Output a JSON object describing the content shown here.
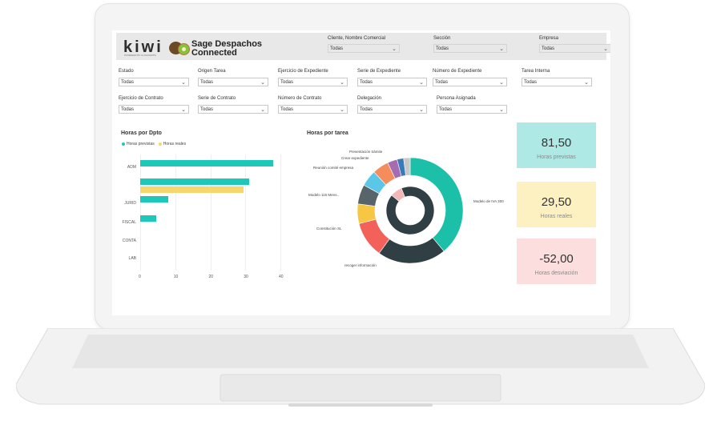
{
  "header": {
    "logo": "kiwi",
    "logo_sub": "POWERED BY CLOUDAPPS",
    "title": "Sage Despachos Connected"
  },
  "top_filters": [
    {
      "label": "Cliente, Nombre Comercial",
      "value": "Todas"
    },
    {
      "label": "Sección",
      "value": "Todas"
    },
    {
      "label": "Empresa",
      "value": "Todas"
    }
  ],
  "filters_row1": [
    {
      "label": "Estado",
      "value": "Todas"
    },
    {
      "label": "Origen Tarea",
      "value": "Todas"
    },
    {
      "label": "Ejercicio de Expediente",
      "value": "Todas"
    },
    {
      "label": "Serie de Expediente",
      "value": "Todas"
    },
    {
      "label": "Número de Expediente",
      "value": "Todas"
    },
    {
      "label": "Tarea Interna",
      "value": "Todas"
    }
  ],
  "filters_row2": [
    {
      "label": "Ejercicio de Contrato",
      "value": "Todas"
    },
    {
      "label": "Serie de Contrato",
      "value": "Todas"
    },
    {
      "label": "Número de Contrato",
      "value": "Todas"
    },
    {
      "label": "Delegación",
      "value": "Todas"
    },
    {
      "label": "Persona Asignada",
      "value": "Todas"
    }
  ],
  "bar_chart": {
    "title": "Horas por Dpto",
    "legend": [
      "Horas previstas",
      "Horas reales"
    ],
    "colors": [
      "#1ec8b8",
      "#f5d76e"
    ]
  },
  "donut_chart": {
    "title": "Horas por tarea",
    "colors": [
      "#1cbfa7",
      "#2f3f44",
      "#f2625b",
      "#f7c744",
      "#57656b",
      "#5bc7e8",
      "#f58c5b",
      "#a56db0",
      "#3a7ab8",
      "#c8c8c8"
    ]
  },
  "chart_data": [
    {
      "type": "bar",
      "title": "Horas por Dpto",
      "categories": [
        "ADM",
        "",
        "JURID",
        "FISCAL",
        "CONTA",
        "LAB"
      ],
      "series": [
        {
          "name": "Horas previstas",
          "values": [
            38,
            31,
            8,
            4.5,
            0,
            0
          ]
        },
        {
          "name": "Horas reales",
          "values": [
            0,
            29.5,
            0,
            0,
            0,
            0
          ]
        }
      ],
      "xticks": [
        "0",
        "10",
        "20",
        "30",
        "40"
      ],
      "xlim": [
        0,
        40
      ]
    },
    {
      "type": "pie",
      "title": "Horas por tarea",
      "labels": [
        "Modelo de IVA 300",
        "recoger información",
        "Constitución SL",
        "Modelo 115 Mens..",
        "Reunión comité empresa",
        "Crear expediente",
        "Presentación trámite",
        "",
        "",
        ""
      ],
      "values": [
        39,
        21,
        11,
        6,
        6,
        5,
        5,
        3,
        2,
        2
      ],
      "inner_ring": {
        "values": [
          92,
          8
        ],
        "colors": [
          "#2f3f44",
          "#f2b8b8"
        ]
      }
    }
  ],
  "kpis": [
    {
      "value": "81,50",
      "label": "Horas previstas",
      "bg": "#aee9e5"
    },
    {
      "value": "29,50",
      "label": "Horas reales",
      "bg": "#fdf1c2"
    },
    {
      "value": "-52,00",
      "label": "Horas desviación",
      "bg": "#fcdede"
    }
  ]
}
